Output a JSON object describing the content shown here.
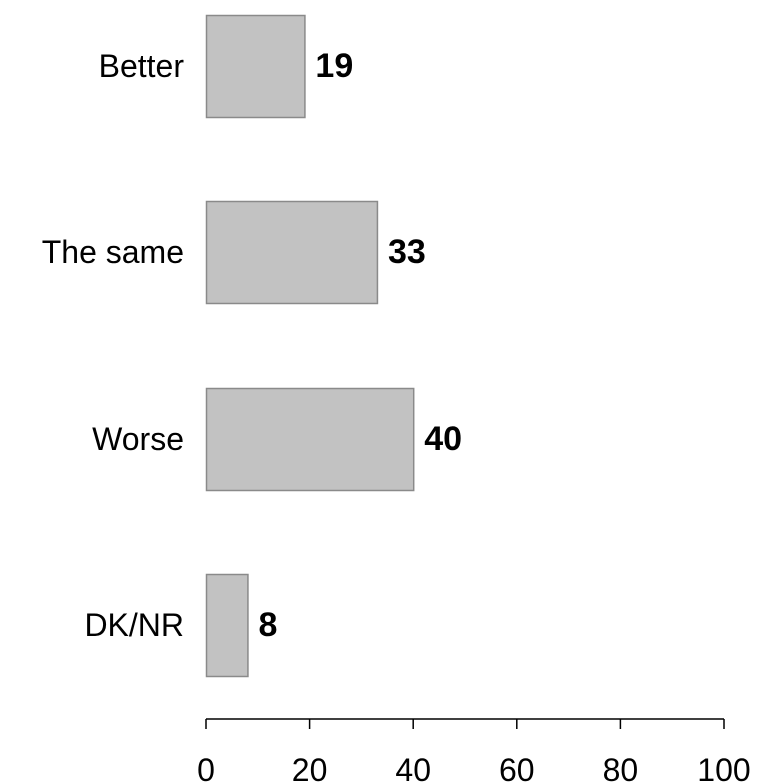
{
  "chart_data": {
    "type": "bar",
    "orientation": "horizontal",
    "categories": [
      "Better",
      "The same",
      "Worse",
      "DK/NR"
    ],
    "values": [
      19,
      33,
      40,
      8
    ],
    "data_labels": [
      "19",
      "33",
      "40",
      "8"
    ],
    "xlim": [
      0,
      100
    ],
    "x_ticks": [
      0,
      20,
      40,
      60,
      80,
      100
    ],
    "x_tick_labels": [
      "0",
      "20",
      "40",
      "60",
      "80",
      "100"
    ],
    "grid": false,
    "legend": "none",
    "colors": {
      "bar_fill": "#c2c2c2",
      "bar_stroke": "#8a8a8a",
      "axis": "#000000",
      "text": "#000000"
    }
  }
}
